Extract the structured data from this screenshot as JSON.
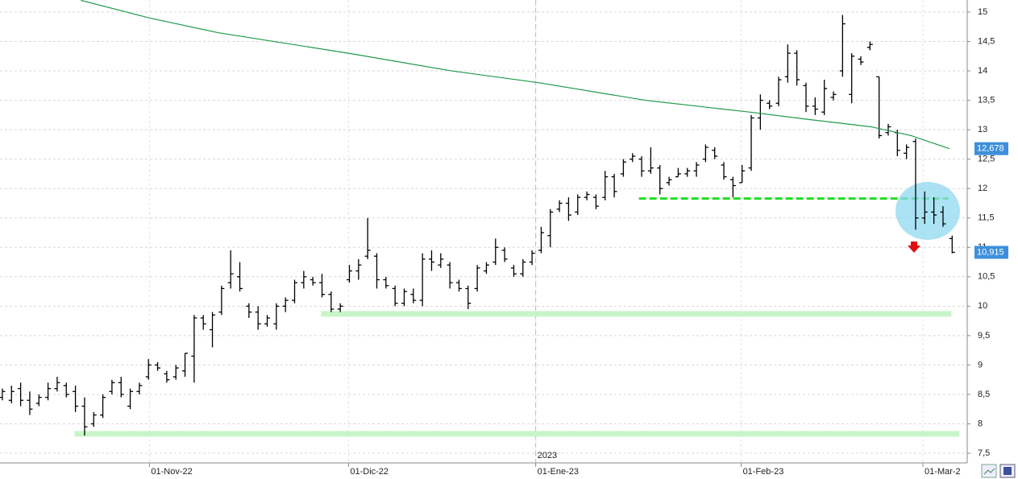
{
  "chart_data": {
    "type": "ohlc",
    "xlim": [
      -0.26,
      105.65
    ],
    "ylim": [
      7.336,
      15.205
    ],
    "yticks": [
      {
        "value": 7.5,
        "label": "7,5"
      },
      8,
      {
        "value": 8.5,
        "label": "8,5"
      },
      9,
      {
        "value": 9.5,
        "label": "9,5"
      },
      10,
      {
        "value": 10.5,
        "label": "10,5"
      },
      11,
      {
        "value": 11.5,
        "label": "11,5"
      },
      12,
      {
        "value": 12.5,
        "label": "12,5"
      },
      13,
      {
        "value": 13.5,
        "label": "13,5"
      },
      14,
      {
        "value": 14.5,
        "label": "14,5"
      },
      15
    ],
    "xticks": [
      {
        "value": 16.1,
        "label": "01-Nov-22"
      },
      {
        "value": 37.9,
        "label": "01-Dic-22"
      },
      {
        "value": 58.4,
        "label": "01-Ene-23"
      },
      {
        "value": 80.9,
        "label": "01-Feb-23"
      },
      {
        "value": 100.8,
        "label": "01-Mar-2"
      }
    ],
    "year_marker": {
      "value": 58.4,
      "label": "2023"
    },
    "grid": true,
    "color": "#000000",
    "open": [
      8.45,
      8.4,
      8.6,
      8.4,
      8.35,
      8.45,
      8.6,
      8.65,
      8.55,
      8.3,
      8.0,
      8.15,
      8.55,
      8.7,
      8.3,
      8.55,
      8.8,
      9.0,
      8.85,
      8.8,
      8.9,
      9.15,
      9.8,
      9.6,
      9.9,
      10.4,
      10.5,
      10.0,
      9.9,
      9.7,
      9.7,
      10.0,
      10.1,
      10.4,
      10.45,
      10.4,
      10.2,
      9.95,
      10.45,
      10.6,
      10.85,
      10.85,
      10.45,
      10.3,
      10.05,
      10.2,
      10.1,
      10.8,
      10.7,
      10.7,
      10.4,
      10.3,
      10.3,
      10.6,
      10.75,
      10.95,
      10.65,
      10.55,
      10.75,
      10.95,
      11.2,
      11.65,
      11.75,
      11.6,
      11.85,
      11.85,
      11.85,
      12.2,
      12.25,
      12.5,
      12.5,
      12.3,
      12.35,
      12.1,
      12.2,
      12.25,
      12.3,
      12.5,
      12.65,
      12.4,
      12.15,
      12.1,
      12.35,
      13.2,
      13.45,
      13.45,
      13.9,
      14.3,
      13.75,
      13.4,
      13.3,
      13.55,
      14.0,
      13.6,
      14.2,
      14.4,
      13.9,
      12.95,
      12.95,
      12.6,
      12.8,
      11.5,
      11.6,
      11.6,
      11.15
    ],
    "high": [
      8.6,
      8.65,
      8.7,
      8.55,
      8.5,
      8.7,
      8.8,
      8.7,
      8.65,
      8.45,
      8.2,
      8.5,
      8.75,
      8.8,
      8.6,
      8.7,
      9.1,
      9.05,
      8.9,
      9.0,
      9.2,
      9.85,
      9.85,
      9.9,
      10.35,
      10.95,
      10.75,
      10.05,
      10.0,
      9.85,
      10.05,
      10.15,
      10.45,
      10.6,
      10.5,
      10.55,
      10.25,
      10.05,
      10.7,
      10.8,
      11.5,
      10.9,
      10.5,
      10.35,
      10.3,
      10.3,
      10.9,
      10.95,
      10.9,
      10.75,
      10.45,
      10.35,
      10.7,
      10.75,
      11.15,
      11.0,
      10.7,
      10.8,
      10.95,
      11.35,
      11.65,
      11.8,
      11.85,
      11.9,
      11.95,
      11.9,
      12.3,
      12.25,
      12.5,
      12.6,
      12.55,
      12.7,
      12.4,
      12.2,
      12.35,
      12.35,
      12.45,
      12.75,
      12.7,
      12.45,
      12.2,
      12.4,
      13.25,
      13.6,
      13.5,
      13.9,
      14.45,
      14.35,
      13.8,
      13.55,
      13.85,
      13.65,
      14.95,
      14.3,
      14.25,
      14.5,
      13.9,
      13.1,
      13.0,
      12.75,
      12.85,
      11.95,
      11.85,
      11.7,
      11.2
    ],
    "low": [
      8.4,
      8.35,
      8.3,
      8.15,
      8.3,
      8.4,
      8.55,
      8.45,
      8.2,
      7.8,
      7.95,
      8.1,
      8.5,
      8.45,
      8.25,
      8.5,
      8.75,
      8.9,
      8.7,
      8.75,
      8.8,
      8.7,
      9.6,
      9.3,
      9.85,
      10.3,
      10.25,
      9.8,
      9.6,
      9.65,
      9.6,
      9.9,
      10.05,
      10.3,
      10.35,
      10.15,
      9.9,
      9.9,
      10.4,
      10.45,
      10.8,
      10.3,
      10.3,
      10.0,
      10.0,
      10.05,
      10.0,
      10.6,
      10.65,
      10.3,
      10.25,
      9.95,
      10.25,
      10.55,
      10.7,
      10.75,
      10.5,
      10.5,
      10.7,
      10.9,
      11.0,
      11.6,
      11.45,
      11.55,
      11.8,
      11.65,
      11.8,
      11.85,
      12.2,
      12.45,
      12.2,
      12.25,
      11.9,
      12.05,
      12.2,
      12.2,
      12.2,
      12.45,
      12.5,
      12.15,
      11.85,
      12.1,
      12.3,
      13.0,
      13.35,
      13.4,
      13.8,
      13.75,
      13.3,
      13.25,
      13.25,
      13.5,
      13.9,
      13.45,
      14.1,
      14.35,
      12.85,
      12.9,
      12.55,
      12.5,
      11.3,
      11.4,
      11.4,
      11.35,
      10.9
    ],
    "close": [
      8.55,
      8.55,
      8.4,
      8.25,
      8.45,
      8.6,
      8.7,
      8.5,
      8.3,
      7.95,
      8.15,
      8.45,
      8.7,
      8.5,
      8.55,
      8.65,
      9.0,
      8.95,
      8.75,
      8.95,
      9.2,
      9.8,
      9.7,
      9.85,
      10.3,
      10.55,
      10.3,
      9.9,
      9.7,
      9.8,
      10.0,
      10.1,
      10.4,
      10.5,
      10.4,
      10.2,
      9.95,
      10.0,
      10.6,
      10.7,
      10.95,
      10.45,
      10.35,
      10.05,
      10.25,
      10.1,
      10.8,
      10.75,
      10.8,
      10.4,
      10.3,
      10.05,
      10.65,
      10.7,
      11.0,
      10.8,
      10.55,
      10.75,
      10.9,
      11.25,
      11.6,
      11.75,
      11.55,
      11.85,
      11.9,
      11.7,
      12.2,
      11.95,
      12.45,
      12.55,
      12.3,
      12.35,
      12.0,
      12.15,
      12.25,
      12.3,
      12.4,
      12.7,
      12.55,
      12.2,
      12.05,
      12.3,
      13.2,
      13.5,
      13.4,
      13.85,
      14.3,
      13.85,
      13.4,
      13.35,
      13.7,
      13.6,
      14.8,
      14.25,
      14.15,
      14.45,
      12.9,
      13.05,
      12.65,
      12.7,
      11.5,
      11.6,
      11.55,
      11.4,
      10.915
    ],
    "moving_average": {
      "color": "#1e9a4a",
      "x": [
        8.6,
        16.1,
        23.6,
        37.9,
        49.2,
        58.7,
        70.4,
        81.8,
        88,
        95.1,
        99.5,
        103.7
      ],
      "values": [
        15.2,
        14.9,
        14.65,
        14.3,
        14.0,
        13.8,
        13.5,
        13.3,
        13.18,
        13.05,
        12.9,
        12.678
      ]
    },
    "price_labels": [
      {
        "value": 12.678,
        "label": "12,678"
      },
      {
        "value": 10.915,
        "label": "10,915"
      }
    ],
    "levels": [
      {
        "value": 9.87,
        "x": [
          34.9,
          103.9
        ],
        "color": "#c8f5c8",
        "style": "solid"
      },
      {
        "value": 7.83,
        "x": [
          7.9,
          104.8
        ],
        "color": "#c8f5c8",
        "style": "solid"
      },
      {
        "value": 11.83,
        "x": [
          69.7,
          103.6
        ],
        "color": "#22dd22",
        "style": "dashed"
      }
    ]
  }
}
